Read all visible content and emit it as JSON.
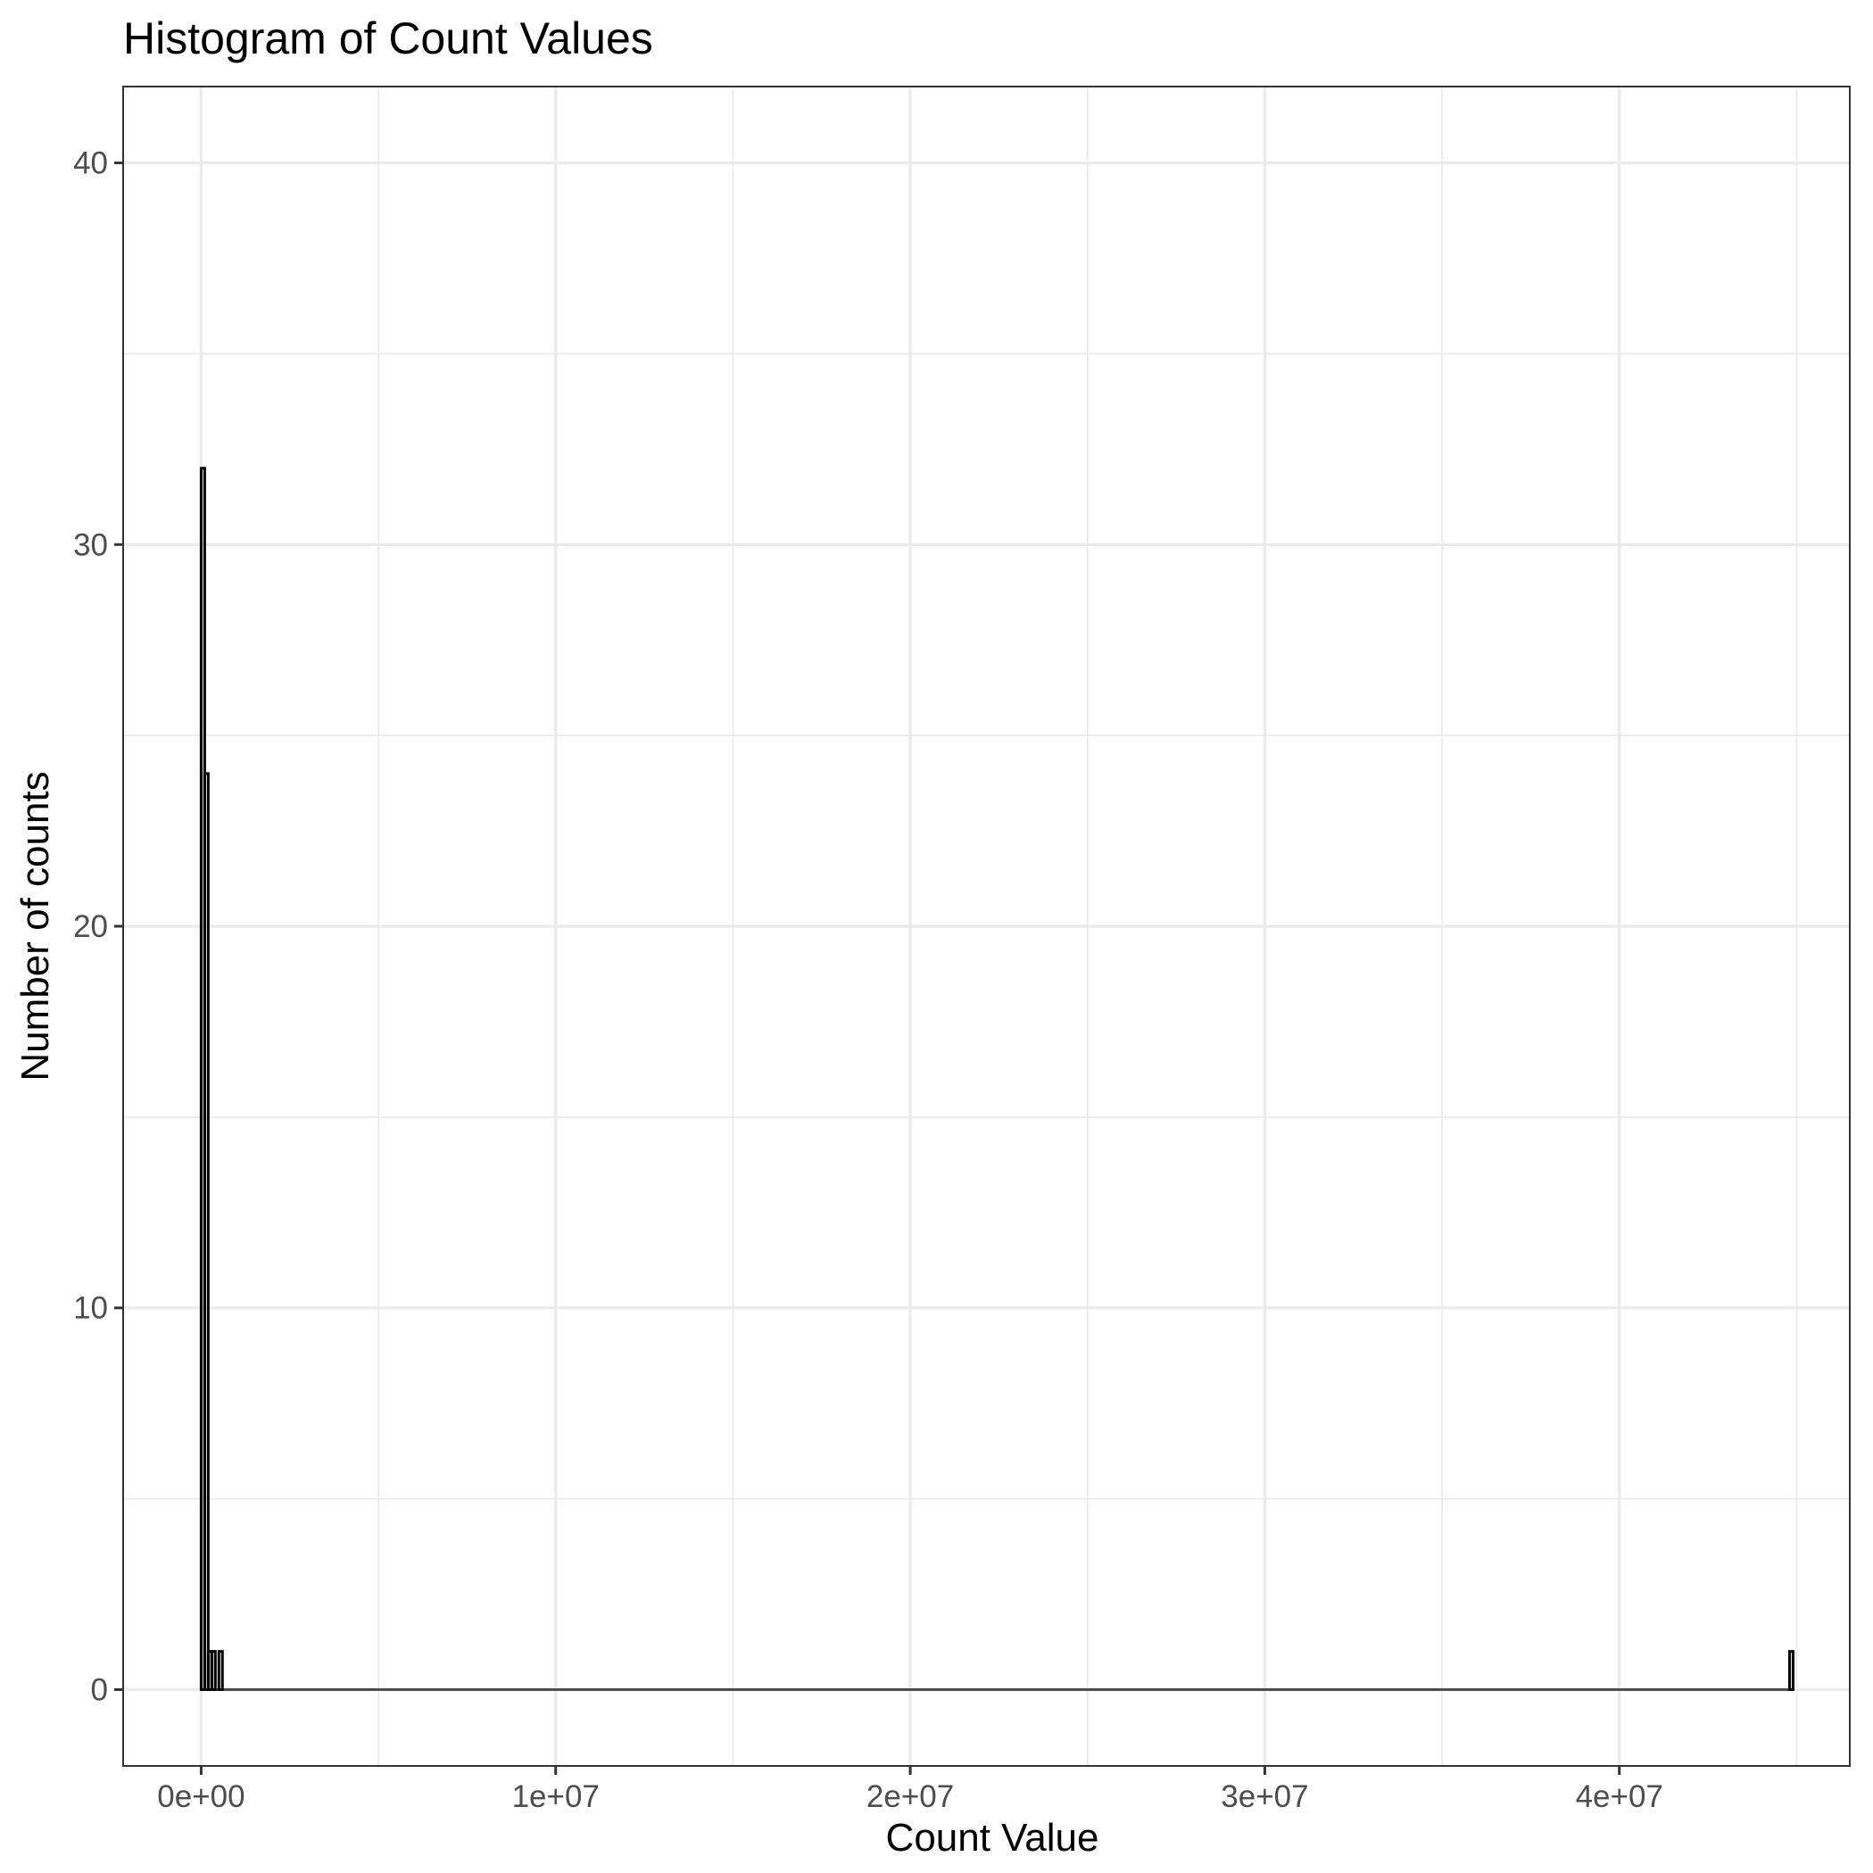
{
  "chart_data": {
    "type": "histogram",
    "title": "Histogram of Count Values",
    "xlabel": "Count Value",
    "ylabel": "Number of counts",
    "xlim": [
      -2200000,
      46500000
    ],
    "ylim": [
      -2,
      42
    ],
    "x_ticks": [
      {
        "value": 0,
        "label": "0e+00"
      },
      {
        "value": 10000000,
        "label": "1e+07"
      },
      {
        "value": 20000000,
        "label": "2e+07"
      },
      {
        "value": 30000000,
        "label": "3e+07"
      },
      {
        "value": 40000000,
        "label": "4e+07"
      }
    ],
    "y_ticks": [
      {
        "value": 0,
        "label": "0"
      },
      {
        "value": 10,
        "label": "10"
      },
      {
        "value": 20,
        "label": "20"
      },
      {
        "value": 30,
        "label": "30"
      },
      {
        "value": 40,
        "label": "40"
      }
    ],
    "x_minor": [
      5000000,
      15000000,
      25000000,
      35000000,
      45000000
    ],
    "y_minor": [
      5,
      15,
      25,
      35
    ],
    "bin_width": 100000,
    "bins": [
      {
        "x": 0,
        "count": 32
      },
      {
        "x": 100000,
        "count": 24
      },
      {
        "x": 200000,
        "count": 1
      },
      {
        "x": 300000,
        "count": 1
      },
      {
        "x": 500000,
        "count": 1
      },
      {
        "x": 44800000,
        "count": 1
      }
    ],
    "x_range_shown": [
      0,
      44800000
    ],
    "grid": true,
    "legend": "none",
    "colors": {
      "bar_outline": "#000000",
      "grid": "#ebebeb",
      "panel_border": "#333333"
    }
  }
}
